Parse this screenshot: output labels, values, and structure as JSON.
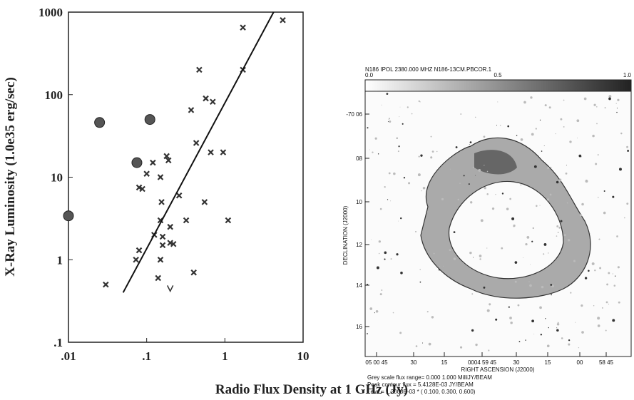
{
  "chart_data": {
    "type": "scatter",
    "xlabel": "Radio Flux Density at 1 GHz (Jy)",
    "ylabel": "X-Ray Luminosity (1.0e35 erg/sec)",
    "xscale": "log",
    "yscale": "log",
    "xlim": [
      0.01,
      10
    ],
    "ylim": [
      0.1,
      1000
    ],
    "xticks": [
      {
        "value": 0.01,
        "label": ".01"
      },
      {
        "value": 0.1,
        "label": ".1"
      },
      1,
      10
    ],
    "yticks": [
      {
        "value": 0.1,
        "label": ".1"
      },
      1,
      10,
      100,
      1000
    ],
    "series": [
      {
        "marker": "circle",
        "color": "#555555",
        "x": [
          0.01,
          0.025,
          0.075,
          0.11
        ],
        "y": [
          3.4,
          46,
          15,
          50
        ]
      },
      {
        "marker": "cross",
        "color": "#333333",
        "x": [
          1.7,
          5.5,
          0.47,
          1.7,
          0.57,
          0.7,
          0.37,
          0.43,
          0.66,
          0.95,
          0.18,
          0.19,
          0.12,
          0.1,
          0.15,
          0.08,
          0.088,
          0.26,
          0.155,
          0.55,
          0.15,
          0.32,
          1.1,
          0.2,
          0.125,
          0.16,
          0.16,
          0.2,
          0.22,
          0.08,
          0.073,
          0.15,
          0.4,
          0.14,
          0.03
        ],
        "y": [
          650,
          800,
          200,
          200,
          90,
          82,
          65,
          26,
          20,
          20,
          18,
          16,
          15,
          11,
          10,
          7.5,
          7.2,
          6,
          5,
          5,
          3,
          3,
          3,
          2.5,
          2,
          1.9,
          1.5,
          1.6,
          1.55,
          1.3,
          1,
          1,
          0.7,
          0.6,
          0.5
        ]
      },
      {
        "marker": "v",
        "color": "#333333",
        "x": [
          0.2
        ],
        "y": [
          0.45
        ]
      },
      {
        "marker": "line",
        "color": "#111111",
        "x": [
          0.05,
          4.2
        ],
        "y": [
          0.4,
          1000
        ]
      }
    ]
  },
  "radio_image": {
    "header": "N186    IPOL   2380.000 MHZ   N186-13CM.PBCOR.1",
    "colorbar_labels": [
      "0.0",
      "0.5",
      "1.0"
    ],
    "ylabel": "DECLINATION (J2000)",
    "yticks": [
      "-70 06",
      "08",
      "10",
      "12",
      "14",
      "16"
    ],
    "xlabel": "RIGHT ASCENSION (J2000)",
    "xticks": [
      "05 00 45",
      "30",
      "15",
      "0004 59 45",
      "30",
      "15",
      "00",
      "58 45"
    ],
    "footer": [
      "Grey scale flux range=  0.000   1.000 MilliJY/BEAM",
      "Peak contour flux =  5.4128E-03 JY/BEAM",
      "Levs = 1.2000E-03 * ( 0.100, 0.300, 0.600)"
    ]
  }
}
